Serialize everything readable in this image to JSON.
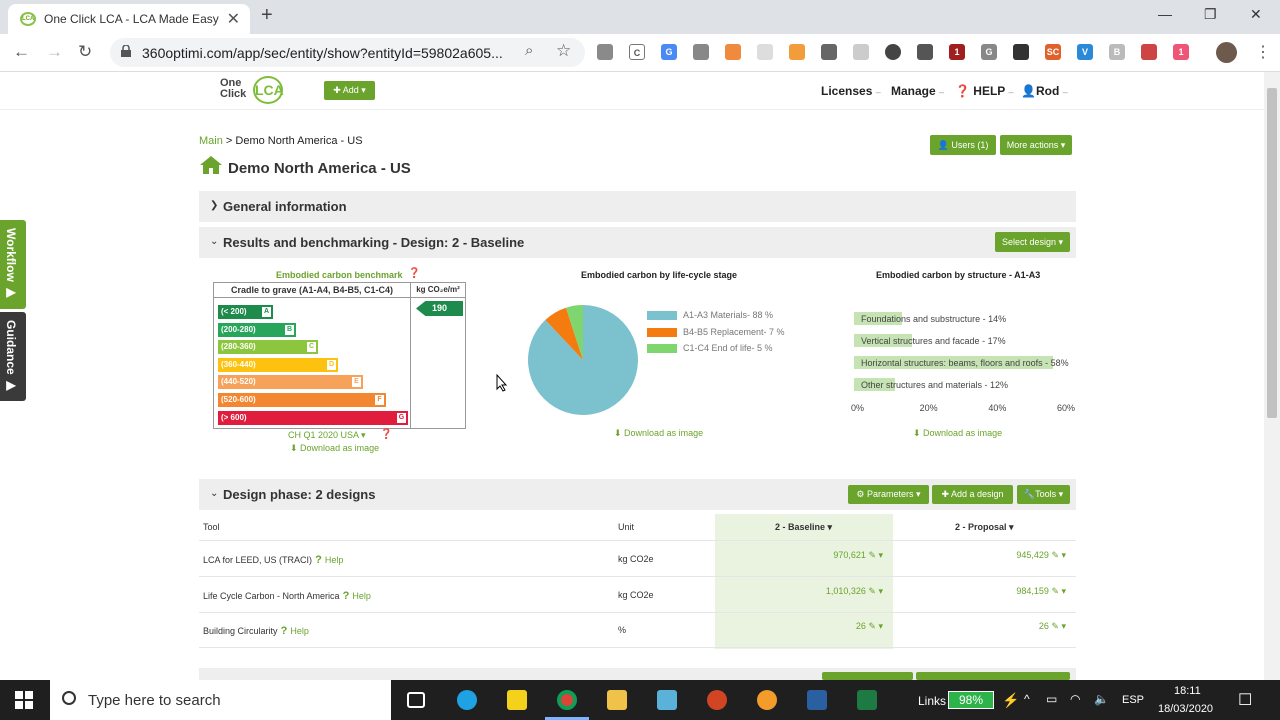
{
  "browser": {
    "tab_title": "One Click LCA - LCA Made Easy",
    "tab_close": "✕",
    "new_tab": "+",
    "url": "360optimi.com/app/sec/entity/show?entityId=59802a605...",
    "window_min": "—",
    "window_max": "❐",
    "window_close": "✕"
  },
  "app": {
    "logo_text1": "One",
    "logo_text2": "Click",
    "logo_mark": "LCA",
    "add_label": "Add",
    "nav": {
      "licenses": "Licenses",
      "manage": "Manage",
      "help": "HELP",
      "user": "Rod"
    },
    "sidebar": {
      "workflow": "Workflow",
      "guidance": "Guidance"
    }
  },
  "page": {
    "breadcrumb_main": "Main",
    "breadcrumb_sep": ">",
    "breadcrumb_current": "Demo North America - US",
    "title": "Demo North America - US",
    "users_button": "Users (1)",
    "more_actions": "More actions",
    "sections": {
      "general": "General information",
      "results": "Results and benchmarking - Design: 2 - Baseline",
      "design_phase": "Design phase: 2 designs"
    },
    "select_design": "Select design",
    "parameters": "Parameters",
    "add_design": "Add a design",
    "tools": "Tools"
  },
  "benchmark": {
    "title": "Embodied carbon benchmark",
    "col1": "Cradle to grave (A1-A4, B4-B5, C1-C4)",
    "col2": "kg CO₂e/m²",
    "value": "190",
    "rows": [
      {
        "range": "(< 200)",
        "grade": "A",
        "color": "#1e8a4c"
      },
      {
        "range": "(200-280)",
        "grade": "B",
        "color": "#26a55b"
      },
      {
        "range": "(280-360)",
        "grade": "C",
        "color": "#8cc63f"
      },
      {
        "range": "(360-440)",
        "grade": "D",
        "color": "#fdc20f"
      },
      {
        "range": "(440-520)",
        "grade": "E",
        "color": "#f6a25a"
      },
      {
        "range": "(520-600)",
        "grade": "F",
        "color": "#f38630"
      },
      {
        "range": "(> 600)",
        "grade": "G",
        "color": "#e01d3c"
      }
    ],
    "standard": "CH Q1 2020 USA",
    "download": "Download as image"
  },
  "chart_data": [
    {
      "type": "pie",
      "title": "Embodied carbon by life-cycle stage",
      "categories": [
        "A1-A3 Materials- 88 %",
        "B4-B5 Replacement- 7 %",
        "C1-C4 End of life- 5 %"
      ],
      "values": [
        88,
        7,
        5
      ],
      "colors": [
        "#7cc1ce",
        "#f47b0f",
        "#7fd66e"
      ],
      "download": "Download as image"
    },
    {
      "type": "bar",
      "title": "Embodied carbon by structure - A1-A3",
      "categories": [
        "Foundations and substructure - 14%",
        "Vertical structures and facade - 17%",
        "Horizontal structures: beams, floors and roofs - 58%",
        "Other structures and materials - 12%"
      ],
      "values": [
        14,
        17,
        58,
        12
      ],
      "xticks": [
        "0%",
        "20%",
        "40%",
        "60%"
      ],
      "xlim": [
        0,
        60
      ],
      "download": "Download as image"
    }
  ],
  "designs": {
    "headers": {
      "tool": "Tool",
      "unit": "Unit",
      "baseline": "2 - Baseline",
      "proposal": "2 - Proposal"
    },
    "rows": [
      {
        "tool": "LCA for LEED, US (TRACI)",
        "help": "Help",
        "unit": "kg CO2e",
        "baseline": "970,621",
        "proposal": "945,429"
      },
      {
        "tool": "Life Cycle Carbon - North America",
        "help": "Help",
        "unit": "kg CO2e",
        "baseline": "1,010,326",
        "proposal": "984,159"
      },
      {
        "tool": "Building Circularity",
        "help": "Help",
        "unit": "%",
        "baseline": "26",
        "proposal": "26"
      }
    ]
  },
  "taskbar": {
    "search_placeholder": "Type here to search",
    "links": "Links",
    "battery": "98%",
    "lang": "ESP",
    "time": "18:11",
    "date": "18/03/2020"
  }
}
